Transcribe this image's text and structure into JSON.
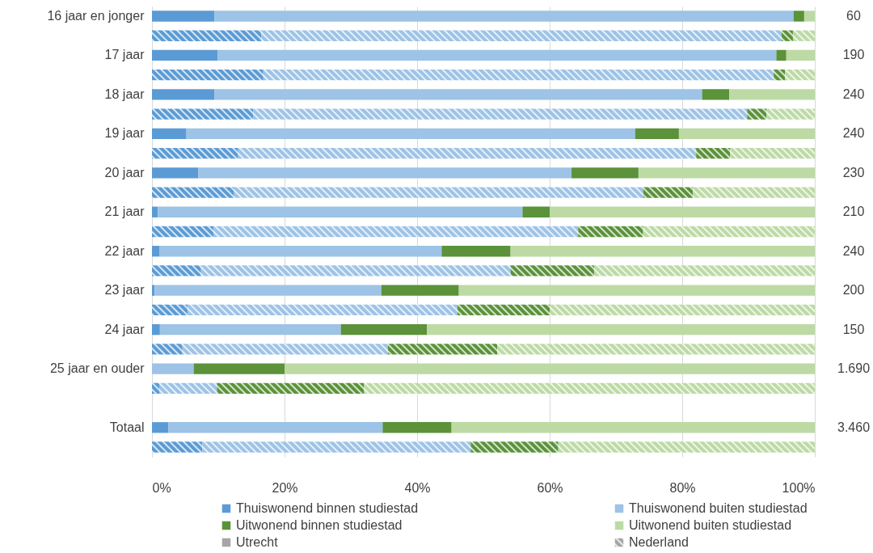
{
  "chart_data": {
    "type": "bar",
    "orientation": "horizontal",
    "stacked": true,
    "categories": [
      "16 jaar en jonger",
      null,
      "17 jaar",
      null,
      "18 jaar",
      null,
      "19 jaar",
      null,
      "20 jaar",
      null,
      "21 jaar",
      null,
      "22 jaar",
      null,
      "23 jaar",
      null,
      "24 jaar",
      null,
      "25 jaar en ouder",
      null,
      null,
      "Totaal",
      null
    ],
    "series": [
      {
        "name": "Thuiswonend binnen studiestad",
        "color": "#5b9bd5",
        "values": [
          9.4,
          16.5,
          9.9,
          16.8,
          9.4,
          15.3,
          5.2,
          13.0,
          7.0,
          12.4,
          0.9,
          9.3,
          1.1,
          7.4,
          0.4,
          5.4,
          1.2,
          4.6,
          0,
          1.1,
          null,
          2.5,
          7.6
        ]
      },
      {
        "name": "Thuiswonend buiten studiestad",
        "color": "#9dc3e6",
        "values": [
          87.4,
          78.5,
          84.3,
          77.0,
          73.6,
          74.5,
          67.7,
          69.1,
          56.3,
          61.7,
          55.0,
          55.0,
          42.6,
          46.7,
          34.2,
          40.7,
          27.3,
          31.0,
          6.3,
          8.7,
          null,
          32.3,
          40.5
        ]
      },
      {
        "name": "Uitwonend binnen studiestad",
        "color": "#5b923a",
        "values": [
          1.6,
          1.7,
          1.5,
          1.7,
          4.1,
          2.9,
          6.6,
          5.1,
          10.1,
          7.5,
          4.1,
          9.8,
          10.4,
          12.6,
          11.7,
          13.9,
          13.0,
          16.5,
          13.7,
          22.2,
          null,
          10.4,
          13.2
        ]
      },
      {
        "name": "Uitwonend buiten studiestad",
        "color": "#bddaa5",
        "values": [
          1.6,
          3.3,
          4.3,
          4.5,
          12.9,
          7.3,
          20.5,
          12.8,
          26.6,
          18.4,
          40.0,
          25.9,
          45.9,
          33.3,
          53.7,
          40.0,
          58.5,
          47.9,
          80.0,
          68.0,
          null,
          54.8,
          38.7
        ]
      },
      {
        "name": "Utrecht",
        "color": "#a6a6a6",
        "values": [
          null,
          null,
          null,
          null,
          null,
          null,
          null,
          null,
          null,
          null,
          null,
          null,
          null,
          null,
          null,
          null,
          null,
          null,
          null,
          null,
          null,
          null,
          null
        ]
      },
      {
        "name": "Nederland",
        "color": "#a6a6a6",
        "values": [
          null,
          null,
          null,
          null,
          null,
          null,
          null,
          null,
          null,
          null,
          null,
          null,
          null,
          null,
          null,
          null,
          null,
          null,
          null,
          null,
          null,
          null,
          null
        ]
      }
    ],
    "xlim": [
      0,
      100
    ],
    "xticks": [
      {
        "value": 0,
        "label": "0%"
      },
      {
        "value": 20,
        "label": "20%"
      },
      {
        "value": 40,
        "label": "40%"
      },
      {
        "value": 60,
        "label": "60%"
      },
      {
        "value": 80,
        "label": "80%"
      },
      {
        "value": 100,
        "label": "100%"
      }
    ],
    "grid": "x",
    "legend": "bottom",
    "annotations": [
      "60",
      "190",
      "240",
      "240",
      "230",
      "210",
      "240",
      "200",
      "150",
      "1.690",
      "3.460"
    ]
  }
}
